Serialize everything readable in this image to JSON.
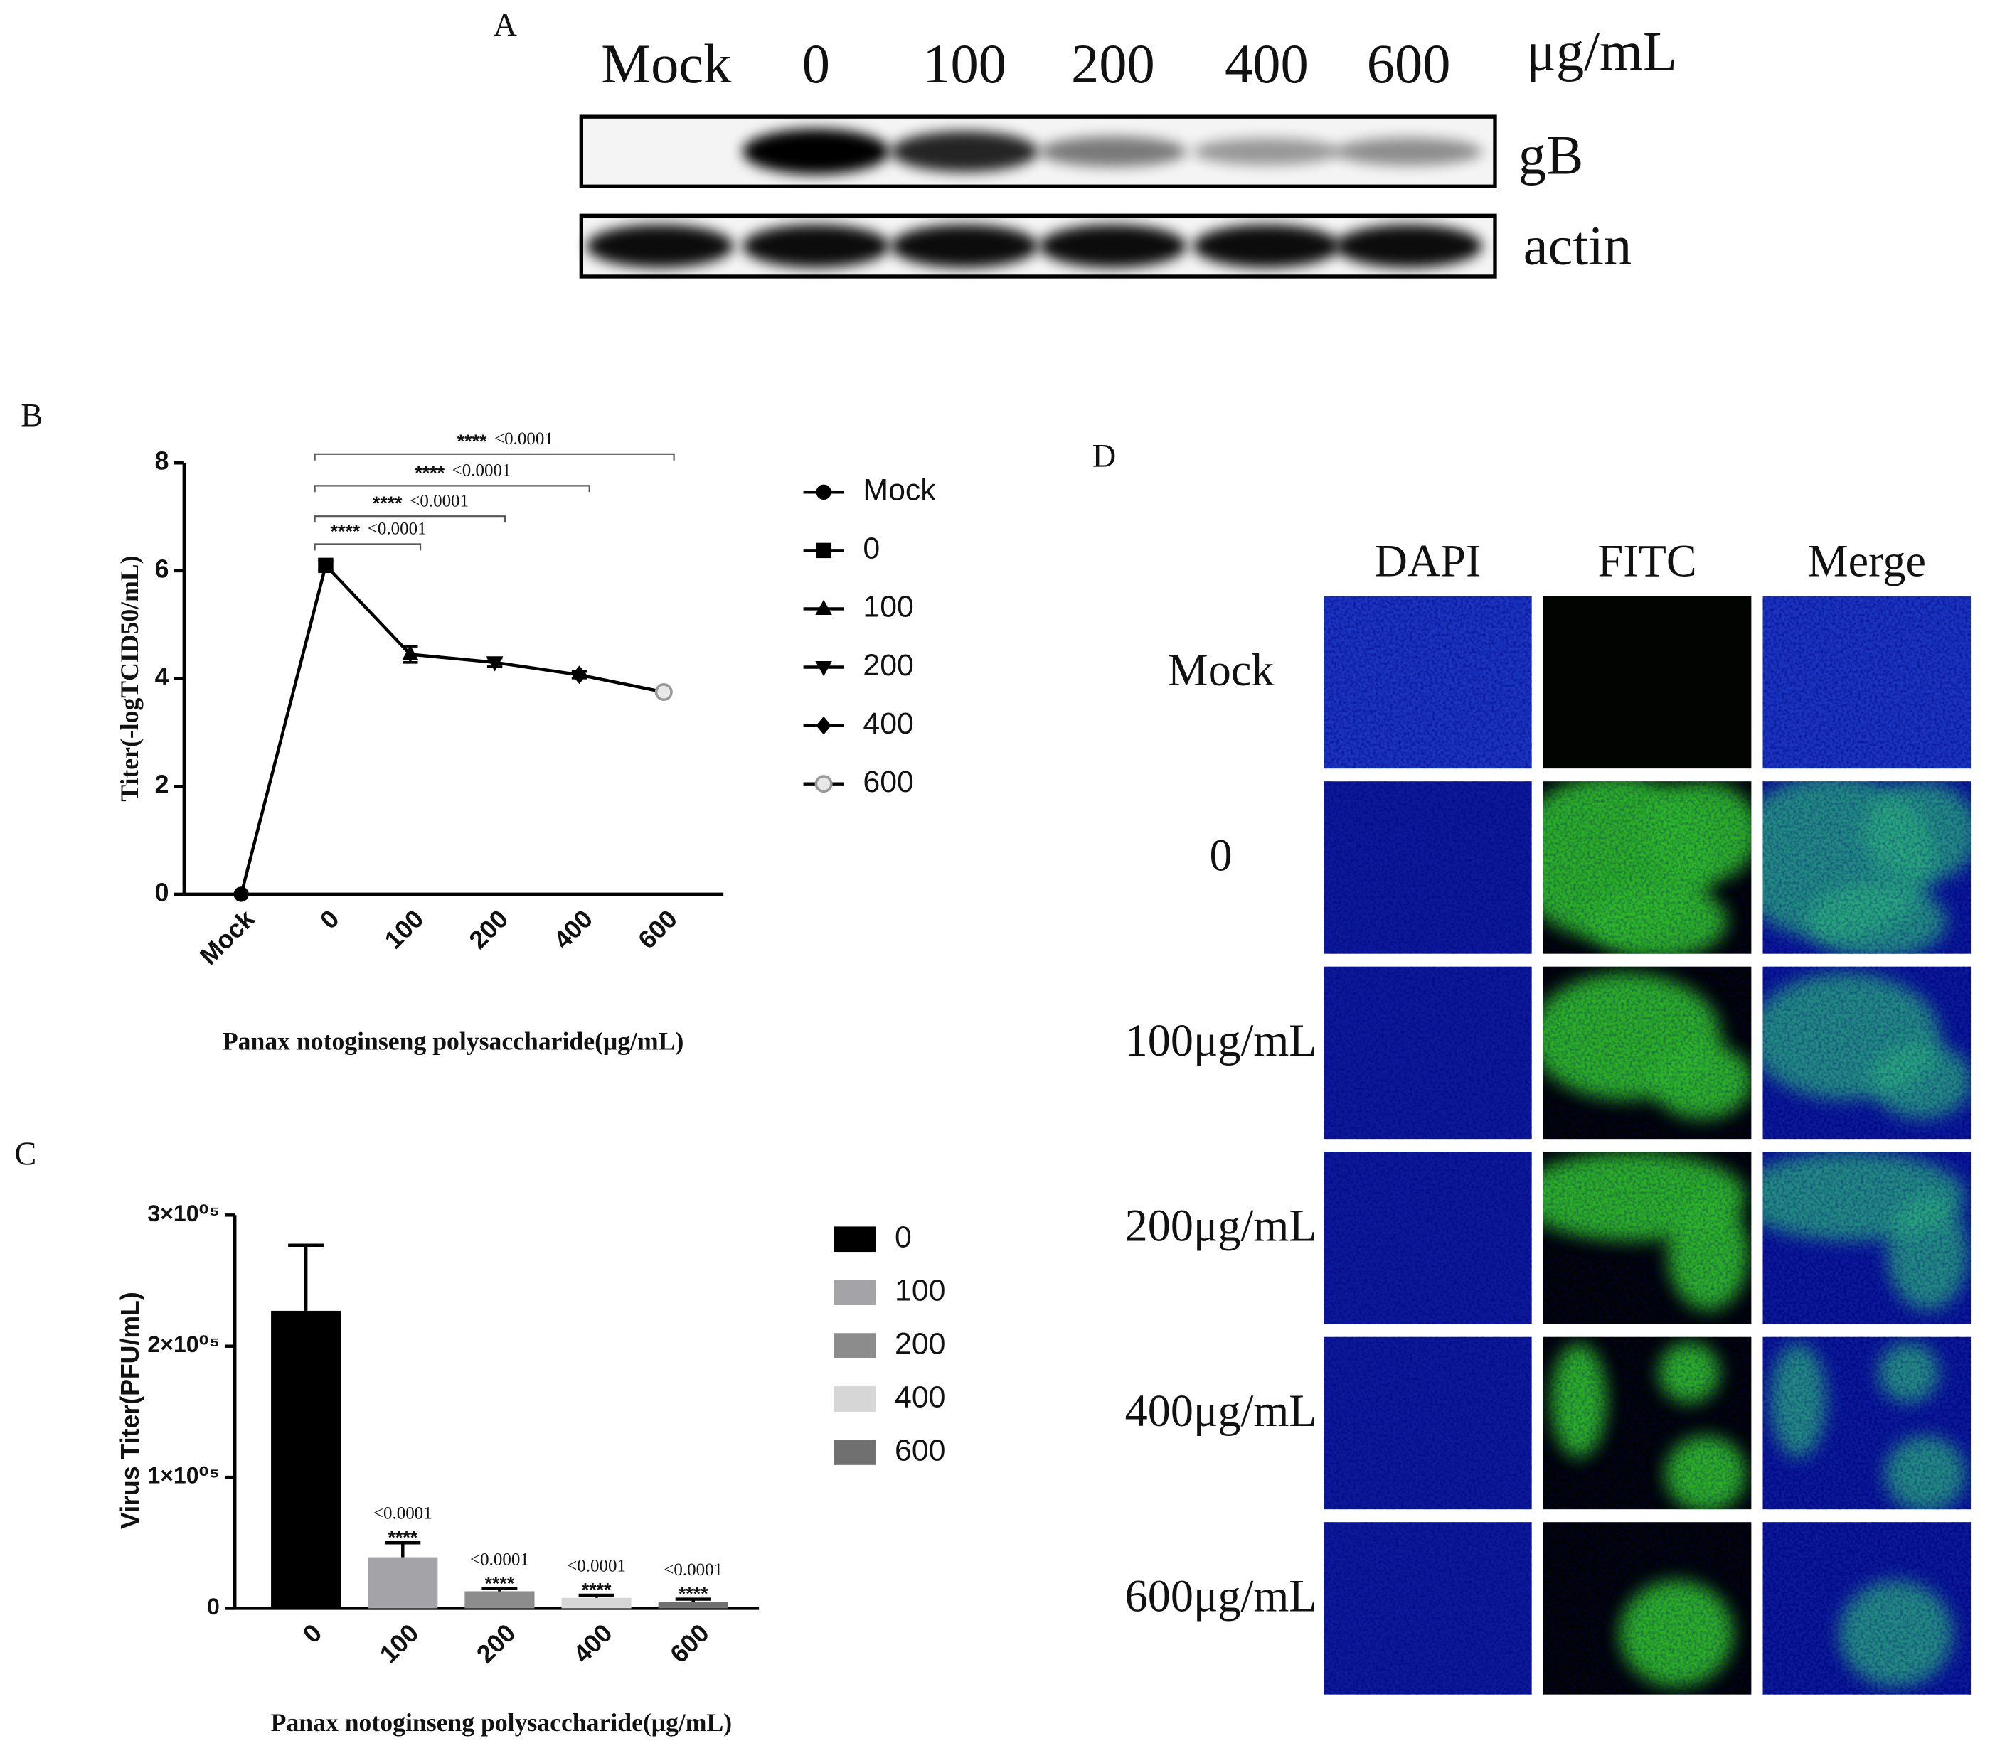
{
  "blot": {
    "label": "A",
    "lanes": [
      "Mock",
      "0",
      "100",
      "200",
      "400",
      "600"
    ],
    "unit": "μg/mL",
    "rows": [
      "gB",
      "actin"
    ]
  },
  "chart_data": [
    {
      "type": "line",
      "label": "B",
      "categories": [
        "Mock",
        "0",
        "100",
        "200",
        "400",
        "600"
      ],
      "values": [
        0,
        6.1,
        4.45,
        4.3,
        4.07,
        3.75
      ],
      "errors": [
        0,
        0.08,
        0.15,
        0.08,
        0.06,
        0.06
      ],
      "markers": [
        "circle",
        "square",
        "triangle-up",
        "triangle-down",
        "diamond",
        "circle-open"
      ],
      "color": "#000000",
      "ylim": [
        0,
        8
      ],
      "yticks": [
        0,
        2,
        4,
        6,
        8
      ],
      "ylabel": "Titer(-logTCID50/mL)",
      "xlabel": "Panax notoginseng polysaccharide(μg/mL)",
      "comparisons": [
        {
          "from": "0",
          "to": "600",
          "stars": "****",
          "p": "<0.0001"
        },
        {
          "from": "0",
          "to": "400",
          "stars": "****",
          "p": "<0.0001"
        },
        {
          "from": "0",
          "to": "200",
          "stars": "****",
          "p": "<0.0001"
        },
        {
          "from": "0",
          "to": "100",
          "stars": "****",
          "p": "<0.0001"
        }
      ]
    },
    {
      "type": "bar",
      "label": "C",
      "categories": [
        "0",
        "100",
        "200",
        "400",
        "600"
      ],
      "values": [
        227000,
        39000,
        13000,
        8000,
        5000
      ],
      "errors": [
        50000,
        11000,
        2000,
        2000,
        2000
      ],
      "colors": [
        "#000000",
        "#a3a3a8",
        "#8c8c8c",
        "#d6d6d6",
        "#707070"
      ],
      "ylim": [
        0,
        300000
      ],
      "yticks": [
        0,
        {
          "value": 100000,
          "label": "1×10⁰⁵"
        },
        {
          "value": 200000,
          "label": "2×10⁰⁵"
        },
        {
          "value": 300000,
          "label": "3×10⁰⁵"
        }
      ],
      "ylabel": "Virus Titer(PFU/mL)",
      "xlabel": "Panax notoginseng polysaccharide(μg/mL)",
      "significance": [
        null,
        {
          "p": "<0.0001",
          "stars": "****"
        },
        {
          "p": "<0.0001",
          "stars": "****"
        },
        {
          "p": "<0.0001",
          "stars": "****"
        },
        {
          "p": "<0.0001",
          "stars": "****"
        }
      ]
    }
  ],
  "panel_d": {
    "label": "D",
    "columns": [
      "DAPI",
      "FITC",
      "Merge"
    ],
    "rows": [
      "Mock",
      "0",
      "100μg/mL",
      "200μg/mL",
      "400μg/mL",
      "600μg/mL"
    ]
  }
}
